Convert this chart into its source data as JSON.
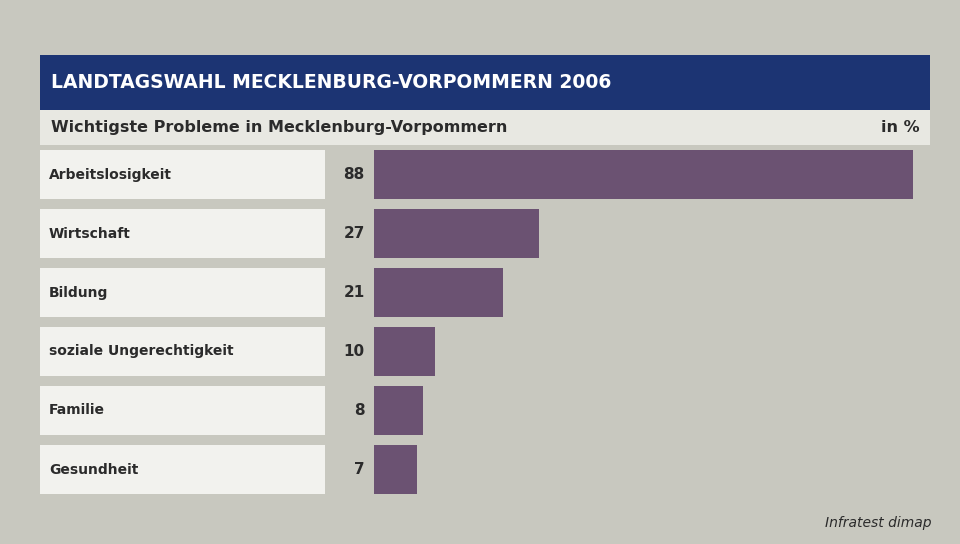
{
  "title_banner": "LANDTAGSWAHL MECKLENBURG-VORPOMMERN 2006",
  "subtitle": "Wichtigste Probleme in Mecklenburg-Vorpommern",
  "unit_label": "in %",
  "source": "Infratest dimap",
  "categories": [
    "Arbeitslosigkeit",
    "Wirtschaft",
    "Bildung",
    "soziale Ungerechtigkeit",
    "Familie",
    "Gesundheit"
  ],
  "values": [
    88,
    27,
    21,
    10,
    8,
    7
  ],
  "bar_color": "#6b5272",
  "title_bg_color": "#1c3473",
  "title_text_color": "#ffffff",
  "subtitle_text_color": "#2b2b2b",
  "chart_bg_color": "#d4d4cc",
  "outer_bg_color": "#c8c8bf",
  "white_box_color": "#f2f2ee",
  "subtitle_bg_color": "#e8e8e2"
}
